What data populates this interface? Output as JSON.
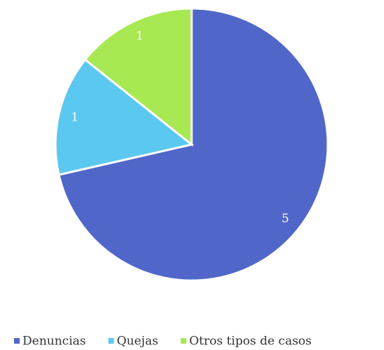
{
  "chart_data": {
    "type": "pie",
    "categories": [
      "Denuncias",
      "Quejas",
      "Otros tipos de casos"
    ],
    "values": [
      5,
      1,
      1
    ],
    "colors": [
      "#5067c9",
      "#5bc8f0",
      "#a8e852"
    ]
  }
}
